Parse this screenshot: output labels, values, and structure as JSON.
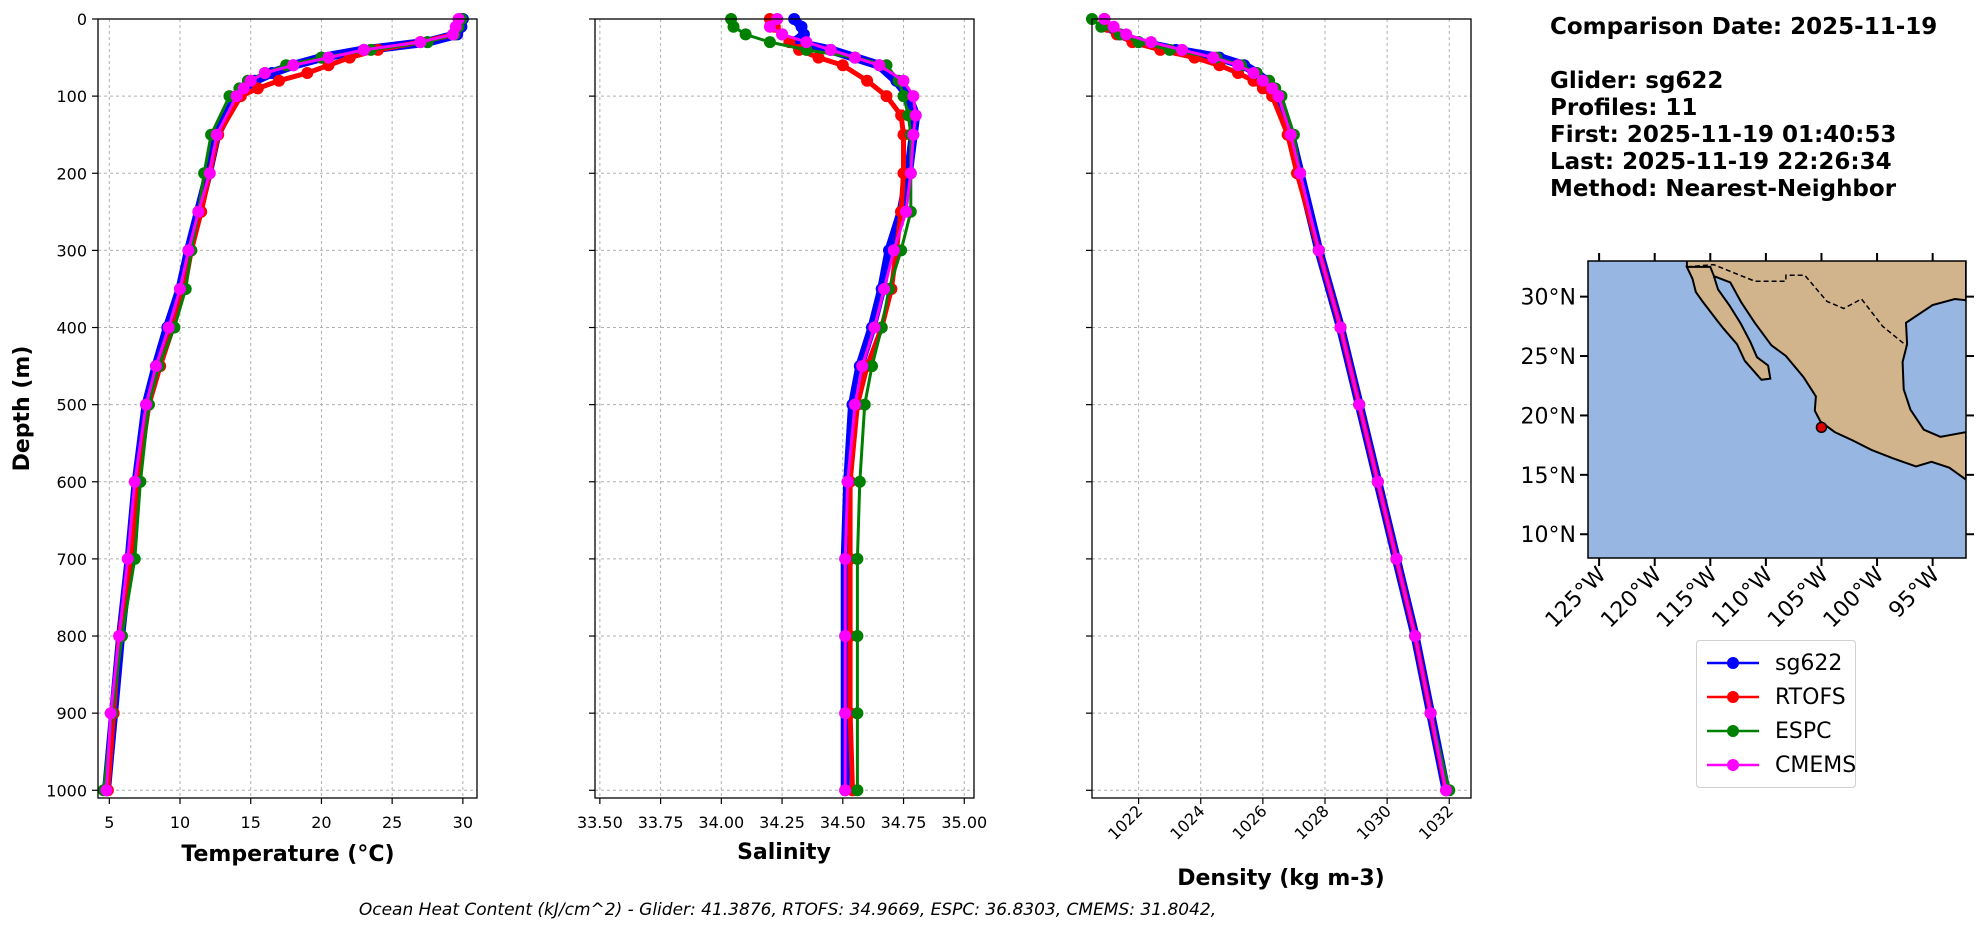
{
  "chart_data": [
    {
      "type": "line",
      "xlabel": "Temperature (°C)",
      "ylabel": "Depth (m)",
      "xlim": [
        4.2,
        31
      ],
      "ylim": [
        1010,
        0
      ],
      "xticks": [
        5,
        10,
        15,
        20,
        25,
        30
      ],
      "yticks": [
        0,
        100,
        200,
        300,
        400,
        500,
        600,
        700,
        800,
        900,
        1000
      ],
      "grid": true,
      "series": [
        {
          "name": "sg622",
          "color": "#0000ff",
          "depth": [
            0,
            10,
            20,
            30,
            40,
            50,
            60,
            70,
            80,
            90,
            100,
            150,
            200,
            250,
            300,
            350,
            400,
            450,
            500,
            600,
            700,
            800,
            900,
            1000
          ],
          "values": [
            30.0,
            29.9,
            29.6,
            27.5,
            23.0,
            20.0,
            18.0,
            16.5,
            15.3,
            14.5,
            14.0,
            12.6,
            12.0,
            11.3,
            10.6,
            10.0,
            9.1,
            8.3,
            7.6,
            6.9,
            6.4,
            5.8,
            5.3,
            4.8
          ]
        },
        {
          "name": "RTOFS",
          "color": "#ff0000",
          "depth": [
            0,
            10,
            20,
            30,
            40,
            50,
            60,
            70,
            80,
            90,
            100,
            150,
            200,
            250,
            300,
            350,
            400,
            450,
            500,
            600,
            700,
            800,
            900,
            1000
          ],
          "values": [
            29.8,
            29.6,
            29.4,
            27.0,
            24.0,
            22.0,
            20.5,
            19.0,
            17.0,
            15.5,
            14.3,
            12.7,
            12.1,
            11.5,
            10.8,
            10.3,
            9.5,
            8.6,
            7.8,
            7.0,
            6.5,
            5.7,
            5.3,
            4.9
          ]
        },
        {
          "name": "ESPC",
          "color": "#008000",
          "depth": [
            0,
            10,
            20,
            30,
            40,
            50,
            60,
            70,
            80,
            90,
            100,
            150,
            200,
            250,
            300,
            350,
            400,
            450,
            500,
            600,
            700,
            800,
            900,
            1000
          ],
          "values": [
            29.9,
            29.7,
            29.4,
            27.5,
            23.5,
            20.0,
            17.5,
            16.0,
            14.8,
            14.2,
            13.5,
            12.2,
            11.7,
            11.3,
            10.8,
            10.4,
            9.6,
            8.5,
            7.8,
            7.2,
            6.8,
            5.9,
            5.2,
            4.6
          ]
        },
        {
          "name": "CMEMS",
          "color": "#ff00ff",
          "depth": [
            0,
            10,
            20,
            30,
            40,
            50,
            60,
            70,
            80,
            90,
            100,
            150,
            200,
            250,
            300,
            350,
            400,
            450,
            500,
            600,
            700,
            800,
            900,
            1000
          ],
          "values": [
            29.7,
            29.5,
            29.3,
            27.0,
            23.0,
            20.5,
            18.0,
            16.0,
            15.0,
            14.5,
            14.0,
            12.6,
            12.1,
            11.3,
            10.6,
            10.0,
            9.2,
            8.3,
            7.6,
            6.8,
            6.3,
            5.7,
            5.1,
            4.8
          ]
        }
      ]
    },
    {
      "type": "line",
      "xlabel": "Salinity",
      "ylim": [
        1010,
        0
      ],
      "xlim": [
        33.48,
        35.04
      ],
      "xticks": [
        "33.50",
        "33.75",
        "34.00",
        "34.25",
        "34.50",
        "34.75",
        "35.00"
      ],
      "grid": true,
      "series": [
        {
          "name": "sg622",
          "color": "#0000ff",
          "depth": [
            0,
            10,
            20,
            30,
            40,
            50,
            60,
            80,
            100,
            125,
            150,
            200,
            250,
            300,
            350,
            400,
            450,
            500,
            600,
            700,
            800,
            900,
            1000
          ],
          "values": [
            34.3,
            34.33,
            34.34,
            34.3,
            34.45,
            34.55,
            34.65,
            34.72,
            34.77,
            34.8,
            34.79,
            34.77,
            34.74,
            34.69,
            34.66,
            34.62,
            34.57,
            34.54,
            34.52,
            34.51,
            34.51,
            34.51,
            34.51
          ]
        },
        {
          "name": "RTOFS",
          "color": "#ff0000",
          "depth": [
            0,
            10,
            20,
            30,
            40,
            50,
            60,
            80,
            100,
            125,
            150,
            200,
            250,
            300,
            350,
            400,
            450,
            500,
            600,
            700,
            800,
            900,
            1000
          ],
          "values": [
            34.2,
            34.22,
            34.25,
            34.28,
            34.32,
            34.4,
            34.5,
            34.6,
            34.68,
            34.74,
            34.75,
            34.75,
            34.74,
            34.72,
            34.7,
            34.66,
            34.6,
            34.56,
            34.53,
            34.53,
            34.53,
            34.53,
            34.54
          ]
        },
        {
          "name": "ESPC",
          "color": "#008000",
          "depth": [
            0,
            10,
            20,
            30,
            40,
            50,
            60,
            80,
            100,
            125,
            150,
            200,
            250,
            300,
            350,
            400,
            450,
            500,
            600,
            700,
            800,
            900,
            1000
          ],
          "values": [
            34.04,
            34.05,
            34.1,
            34.2,
            34.35,
            34.55,
            34.68,
            34.73,
            34.75,
            34.77,
            34.78,
            34.78,
            34.78,
            34.74,
            34.69,
            34.66,
            34.62,
            34.59,
            34.57,
            34.56,
            34.56,
            34.56,
            34.56
          ]
        },
        {
          "name": "CMEMS",
          "color": "#ff00ff",
          "depth": [
            0,
            10,
            20,
            30,
            40,
            50,
            60,
            80,
            100,
            125,
            150,
            200,
            250,
            300,
            350,
            400,
            450,
            500,
            600,
            700,
            800,
            900,
            1000
          ],
          "values": [
            34.23,
            34.2,
            34.25,
            34.35,
            34.45,
            34.55,
            34.65,
            34.75,
            34.79,
            34.8,
            34.79,
            34.78,
            34.76,
            34.71,
            34.67,
            34.63,
            34.58,
            34.55,
            34.52,
            34.51,
            34.51,
            34.51,
            34.51
          ]
        }
      ]
    },
    {
      "type": "line",
      "xlabel": "Density (kg m-3)",
      "ylim": [
        1010,
        0
      ],
      "xlim": [
        1020.5,
        1032.7
      ],
      "xticks": [
        1022,
        1024,
        1026,
        1028,
        1030,
        1032
      ],
      "grid": true,
      "series": [
        {
          "name": "sg622",
          "color": "#0000ff",
          "depth": [
            0,
            10,
            20,
            30,
            40,
            50,
            60,
            70,
            80,
            90,
            100,
            150,
            200,
            300,
            400,
            500,
            600,
            700,
            800,
            900,
            1000
          ],
          "values": [
            1020.9,
            1021.0,
            1021.4,
            1022.0,
            1023.2,
            1024.6,
            1025.4,
            1025.8,
            1026.1,
            1026.3,
            1026.5,
            1026.9,
            1027.2,
            1027.8,
            1028.5,
            1029.1,
            1029.7,
            1030.3,
            1030.9,
            1031.4,
            1031.9
          ]
        },
        {
          "name": "RTOFS",
          "color": "#ff0000",
          "depth": [
            0,
            10,
            20,
            30,
            40,
            50,
            60,
            70,
            80,
            90,
            100,
            150,
            200,
            300,
            400,
            500,
            600,
            700,
            800,
            900,
            1000
          ],
          "values": [
            1020.9,
            1021.0,
            1021.3,
            1021.8,
            1022.7,
            1023.8,
            1024.6,
            1025.2,
            1025.7,
            1026.0,
            1026.3,
            1026.8,
            1027.1,
            1027.8,
            1028.5,
            1029.1,
            1029.7,
            1030.3,
            1030.9,
            1031.4,
            1031.9
          ]
        },
        {
          "name": "ESPC",
          "color": "#008000",
          "depth": [
            0,
            10,
            20,
            30,
            40,
            50,
            60,
            70,
            80,
            90,
            100,
            150,
            200,
            300,
            400,
            500,
            600,
            700,
            800,
            900,
            1000
          ],
          "values": [
            1020.5,
            1020.8,
            1021.4,
            1022.0,
            1023.0,
            1024.5,
            1025.3,
            1025.8,
            1026.2,
            1026.4,
            1026.6,
            1027.0,
            1027.2,
            1027.8,
            1028.5,
            1029.1,
            1029.7,
            1030.3,
            1030.9,
            1031.4,
            1032.0
          ]
        },
        {
          "name": "CMEMS",
          "color": "#ff00ff",
          "depth": [
            0,
            10,
            20,
            30,
            40,
            50,
            60,
            70,
            80,
            90,
            100,
            150,
            200,
            300,
            400,
            500,
            600,
            700,
            800,
            900,
            1000
          ],
          "values": [
            1020.9,
            1021.2,
            1021.6,
            1022.4,
            1023.4,
            1024.4,
            1025.2,
            1025.7,
            1026.0,
            1026.3,
            1026.5,
            1026.9,
            1027.2,
            1027.8,
            1028.5,
            1029.1,
            1029.7,
            1030.3,
            1030.9,
            1031.4,
            1031.9
          ]
        }
      ]
    },
    {
      "type": "map",
      "lat_ticks": [
        "30°N",
        "25°N",
        "20°N",
        "15°N",
        "10°N"
      ],
      "lon_ticks": [
        "125°W",
        "120°W",
        "115°W",
        "110°W",
        "105°W",
        "100°W",
        "95°W"
      ],
      "lat_range": [
        8,
        33
      ],
      "lon_range": [
        -126,
        -92
      ],
      "glider_position": {
        "lat": 19.0,
        "lon": -105.0
      },
      "ocean_color": "#97b6e1",
      "land_color": "#d2b48c"
    }
  ],
  "info": {
    "comparison_date": "Comparison Date: 2025-11-19",
    "glider": "Glider: sg622",
    "profiles": "Profiles: 11",
    "first": "First: 2025-11-19 01:40:53",
    "last": "Last: 2025-11-19 22:26:34",
    "method": "Method: Nearest-Neighbor"
  },
  "legend": [
    {
      "label": "sg622",
      "color": "#0000ff"
    },
    {
      "label": "RTOFS",
      "color": "#ff0000"
    },
    {
      "label": "ESPC",
      "color": "#008000"
    },
    {
      "label": "CMEMS",
      "color": "#ff00ff"
    }
  ],
  "footer": "Ocean Heat Content (kJ/cm^2) - Glider: 41.3876,  RTOFS: 34.9669,  ESPC: 36.8303,  CMEMS: 31.8042,"
}
